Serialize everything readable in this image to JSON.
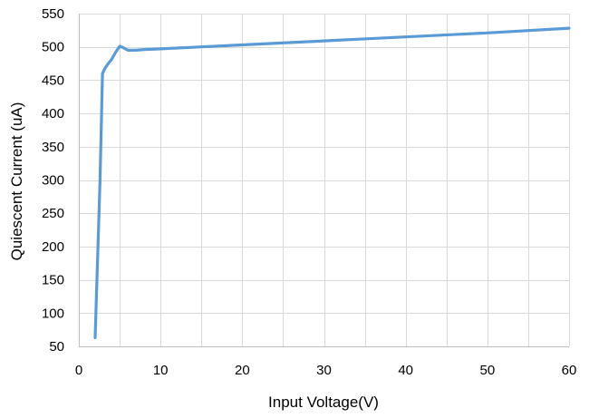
{
  "chart_data": {
    "type": "line",
    "title": "",
    "xlabel": "Input Voltage(V)",
    "ylabel": "Quiescent Current (uA)",
    "xlim": [
      0,
      60
    ],
    "ylim": [
      50,
      550
    ],
    "xticks": [
      0,
      10,
      20,
      30,
      40,
      50,
      60
    ],
    "yticks": [
      50,
      100,
      150,
      200,
      250,
      300,
      350,
      400,
      450,
      500,
      550
    ],
    "x_minor_step": 5,
    "grid": true,
    "legend": "none",
    "series": [
      {
        "color": "#5b9bd5",
        "x": [
          2,
          2.6,
          2.9,
          3.2,
          3.6,
          4.0,
          4.5,
          5.0,
          5.4,
          6.0,
          7,
          8,
          10,
          15,
          20,
          30,
          40,
          50,
          60
        ],
        "y": [
          63,
          300,
          460,
          468,
          475,
          481,
          492,
          501,
          499,
          495,
          495,
          496,
          497,
          500,
          503,
          509,
          515,
          521,
          528
        ]
      }
    ]
  }
}
